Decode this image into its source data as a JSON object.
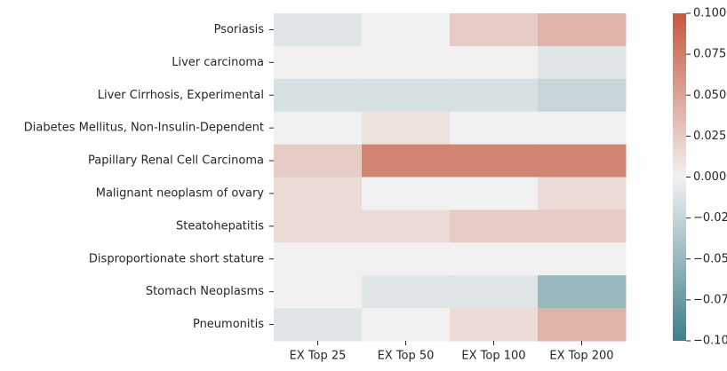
{
  "chart_data": {
    "type": "heatmap",
    "rows": [
      "Psoriasis",
      "Liver carcinoma",
      "Liver Cirrhosis, Experimental",
      "Diabetes Mellitus, Non-Insulin-Dependent",
      "Papillary Renal Cell Carcinoma",
      "Malignant neoplasm of ovary",
      "Steatohepatitis",
      "Disproportionate short stature",
      "Stomach Neoplasms",
      "Pneumonitis"
    ],
    "columns": [
      "EX Top 25",
      "EX Top 50",
      "EX Top 100",
      "EX Top 200"
    ],
    "values": [
      [
        -0.01,
        0.0,
        0.025,
        0.04
      ],
      [
        0.0,
        0.0,
        0.0,
        -0.01
      ],
      [
        -0.015,
        -0.015,
        -0.015,
        -0.025
      ],
      [
        0.0,
        0.01,
        0.0,
        0.0
      ],
      [
        0.025,
        0.07,
        0.07,
        0.07
      ],
      [
        0.015,
        0.0,
        0.0,
        0.015
      ],
      [
        0.015,
        0.015,
        0.025,
        0.025
      ],
      [
        0.0,
        0.0,
        0.0,
        0.0
      ],
      [
        0.0,
        -0.01,
        -0.01,
        -0.05
      ],
      [
        -0.01,
        0.0,
        0.015,
        0.04
      ]
    ],
    "vmin": -0.1,
    "vmax": 0.1,
    "colorbar_ticks": [
      "0.100",
      "0.075",
      "0.050",
      "0.025",
      "0.000",
      "−0.025",
      "−0.050",
      "−0.075",
      "−0.100"
    ],
    "colorbar_tick_values": [
      0.1,
      0.075,
      0.05,
      0.025,
      0.0,
      -0.025,
      -0.05,
      -0.075,
      -0.1
    ],
    "colormap": {
      "low": "#3d7f8c",
      "mid": "#f2f1f1",
      "high": "#c6573f"
    }
  }
}
